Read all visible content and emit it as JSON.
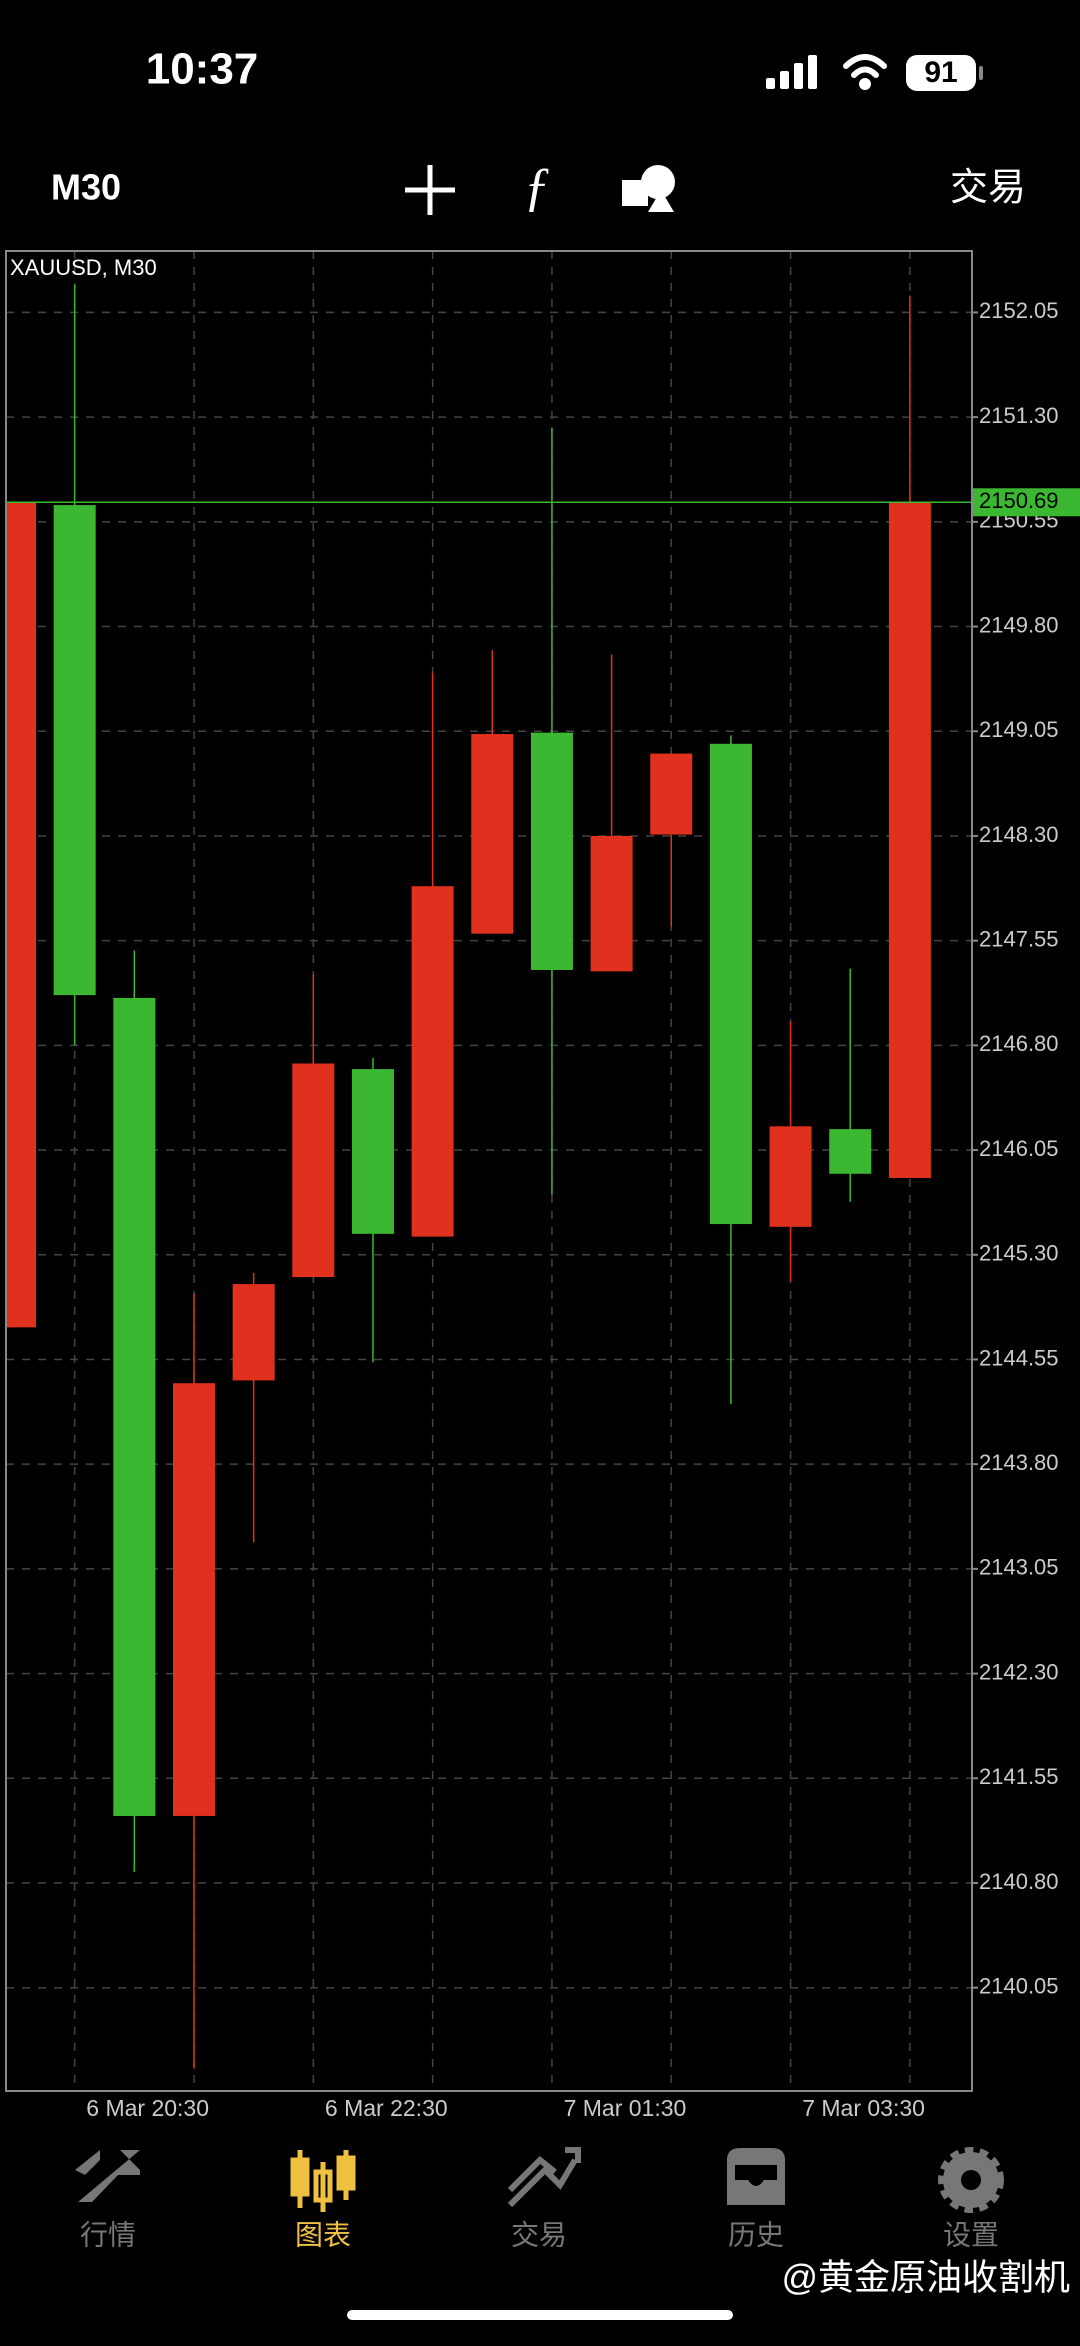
{
  "status_bar": {
    "time": "10:37",
    "battery": "91"
  },
  "toolbar": {
    "timeframe": "M30",
    "trade": "交易"
  },
  "chart_data": {
    "type": "candlestick",
    "title": "XAUUSD, M30",
    "categories": [
      null,
      "6 Mar 20:30",
      null,
      null,
      null,
      "6 Mar 22:30",
      null,
      null,
      null,
      "7 Mar 01:30",
      null,
      null,
      null,
      "7 Mar 03:30",
      null,
      null
    ],
    "open": [
      2144.78,
      2150.67,
      2147.14,
      2141.28,
      2144.4,
      2145.14,
      2146.63,
      2145.43,
      2147.6,
      2149.04,
      2147.33,
      2148.31,
      2148.96,
      2145.5,
      2146.2,
      2145.85
    ],
    "high": [
      2150.69,
      2152.25,
      2147.48,
      2145.02,
      2145.17,
      2147.31,
      2146.71,
      2149.47,
      2149.63,
      2151.22,
      2149.6,
      2148.89,
      2149.02,
      2146.97,
      2147.35,
      2152.17
    ],
    "low": [
      2144.78,
      2146.8,
      2140.88,
      2139.47,
      2143.24,
      2145.14,
      2144.53,
      2145.43,
      2147.6,
      2145.73,
      2147.33,
      2147.65,
      2144.23,
      2145.11,
      2145.68,
      2145.85
    ],
    "close": [
      2150.69,
      2147.16,
      2141.28,
      2144.38,
      2145.09,
      2146.67,
      2145.45,
      2147.94,
      2149.03,
      2147.34,
      2148.3,
      2148.89,
      2145.52,
      2146.22,
      2145.88,
      2150.69
    ],
    "up_color": "#e0301e",
    "down_color": "#3cb731",
    "current_price": 2150.69,
    "ylim": [
      2139.31,
      2152.49
    ],
    "yticks": [
      2152.05,
      {
        "value": 2151.3,
        "label": "2151.30"
      },
      2150.55,
      {
        "value": 2149.8,
        "label": "2149.80"
      },
      2149.05,
      {
        "value": 2148.3,
        "label": "2148.30"
      },
      2147.55,
      {
        "value": 2146.8,
        "label": "2146.80"
      },
      2146.05,
      {
        "value": 2145.3,
        "label": "2145.30"
      },
      2144.55,
      {
        "value": 2143.8,
        "label": "2143.80"
      },
      2143.05,
      {
        "value": 2142.3,
        "label": "2142.30"
      },
      2141.55,
      {
        "value": 2140.8,
        "label": "2140.80"
      },
      2140.05
    ],
    "grid": true
  },
  "tabs": [
    {
      "label": "行情"
    },
    {
      "label": "图表"
    },
    {
      "label": "交易"
    },
    {
      "label": "历史"
    },
    {
      "label": "设置"
    }
  ],
  "active_tab": 1,
  "watermark": "@黄金原油收割机"
}
